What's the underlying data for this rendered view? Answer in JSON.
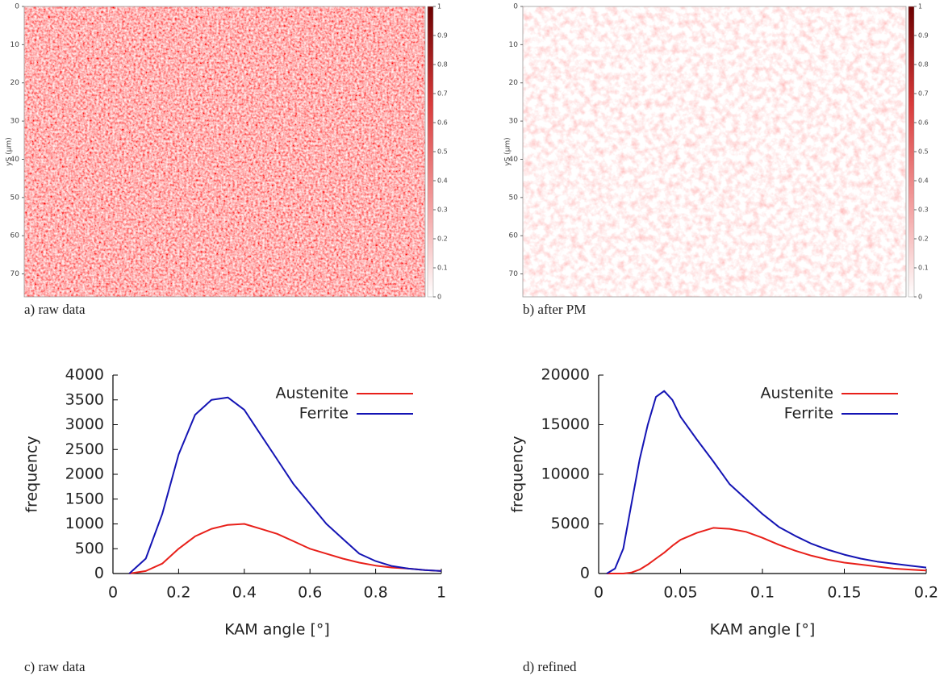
{
  "chart_data": [
    {
      "type": "heatmap",
      "caption": "a) raw data",
      "ylabel": "yS (μm)",
      "ylim": [
        0,
        76
      ],
      "yticks": [
        0,
        10,
        20,
        30,
        40,
        50,
        60,
        70
      ],
      "clim": [
        0,
        1
      ],
      "cticks": [
        0,
        0.1,
        0.2,
        0.3,
        0.4,
        0.5,
        0.6,
        0.7,
        0.8,
        0.9,
        1
      ],
      "colormap": [
        "#ffffff",
        "#f29a9a",
        "#d83a3a",
        "#6b0000"
      ]
    },
    {
      "type": "heatmap",
      "caption": "b) after PM",
      "ylabel": "yS (μm)",
      "ylim": [
        0,
        76
      ],
      "yticks": [
        0,
        10,
        20,
        30,
        40,
        50,
        60,
        70
      ],
      "clim": [
        0,
        1
      ],
      "cticks": [
        0,
        0.1,
        0.2,
        0.3,
        0.4,
        0.5,
        0.6,
        0.7,
        0.8,
        0.9,
        1
      ],
      "colormap": [
        "#ffffff",
        "#f29a9a",
        "#d83a3a",
        "#6b0000"
      ]
    },
    {
      "type": "line",
      "caption": "c) raw data",
      "xlabel": "KAM angle [°]",
      "ylabel": "frequency",
      "xlim": [
        0,
        1
      ],
      "xticks": [
        0,
        0.2,
        0.4,
        0.6,
        0.8,
        1
      ],
      "ylim": [
        0,
        4000
      ],
      "yticks": [
        0,
        500,
        1000,
        1500,
        2000,
        2500,
        3000,
        3500,
        4000
      ],
      "x": [
        0.05,
        0.1,
        0.15,
        0.2,
        0.25,
        0.3,
        0.35,
        0.4,
        0.45,
        0.5,
        0.55,
        0.6,
        0.65,
        0.7,
        0.75,
        0.8,
        0.85,
        0.9,
        0.95,
        1
      ],
      "series": [
        {
          "name": "Austenite",
          "color": "#e8201a",
          "values": [
            0,
            50,
            200,
            500,
            750,
            900,
            980,
            1000,
            900,
            800,
            650,
            500,
            400,
            300,
            220,
            160,
            120,
            100,
            70,
            50
          ]
        },
        {
          "name": "Ferrite",
          "color": "#1414b4",
          "values": [
            0,
            300,
            1200,
            2400,
            3200,
            3500,
            3550,
            3300,
            2800,
            2300,
            1800,
            1400,
            1000,
            700,
            400,
            250,
            150,
            100,
            70,
            50
          ]
        }
      ]
    },
    {
      "type": "line",
      "caption": "d) refined",
      "xlabel": "KAM angle [°]",
      "ylabel": "frequency",
      "xlim": [
        0,
        0.2
      ],
      "xticks": [
        0,
        0.05,
        0.1,
        0.15,
        0.2
      ],
      "ylim": [
        0,
        20000
      ],
      "yticks": [
        0,
        5000,
        10000,
        15000,
        20000
      ],
      "x": [
        0.005,
        0.01,
        0.015,
        0.02,
        0.025,
        0.03,
        0.035,
        0.04,
        0.045,
        0.05,
        0.06,
        0.07,
        0.08,
        0.09,
        0.1,
        0.11,
        0.12,
        0.13,
        0.14,
        0.15,
        0.16,
        0.17,
        0.18,
        0.19,
        0.2
      ],
      "series": [
        {
          "name": "Austenite",
          "color": "#e8201a",
          "values": [
            0,
            0,
            0,
            100,
            400,
            900,
            1500,
            2100,
            2800,
            3400,
            4100,
            4600,
            4500,
            4200,
            3600,
            2900,
            2300,
            1800,
            1400,
            1100,
            900,
            700,
            500,
            400,
            300
          ]
        },
        {
          "name": "Ferrite",
          "color": "#1414b4",
          "values": [
            0,
            500,
            2500,
            7000,
            11500,
            15000,
            17800,
            18400,
            17500,
            15800,
            13500,
            11300,
            9000,
            7500,
            6000,
            4700,
            3800,
            3000,
            2400,
            1900,
            1500,
            1200,
            1000,
            800,
            600
          ]
        }
      ]
    }
  ]
}
